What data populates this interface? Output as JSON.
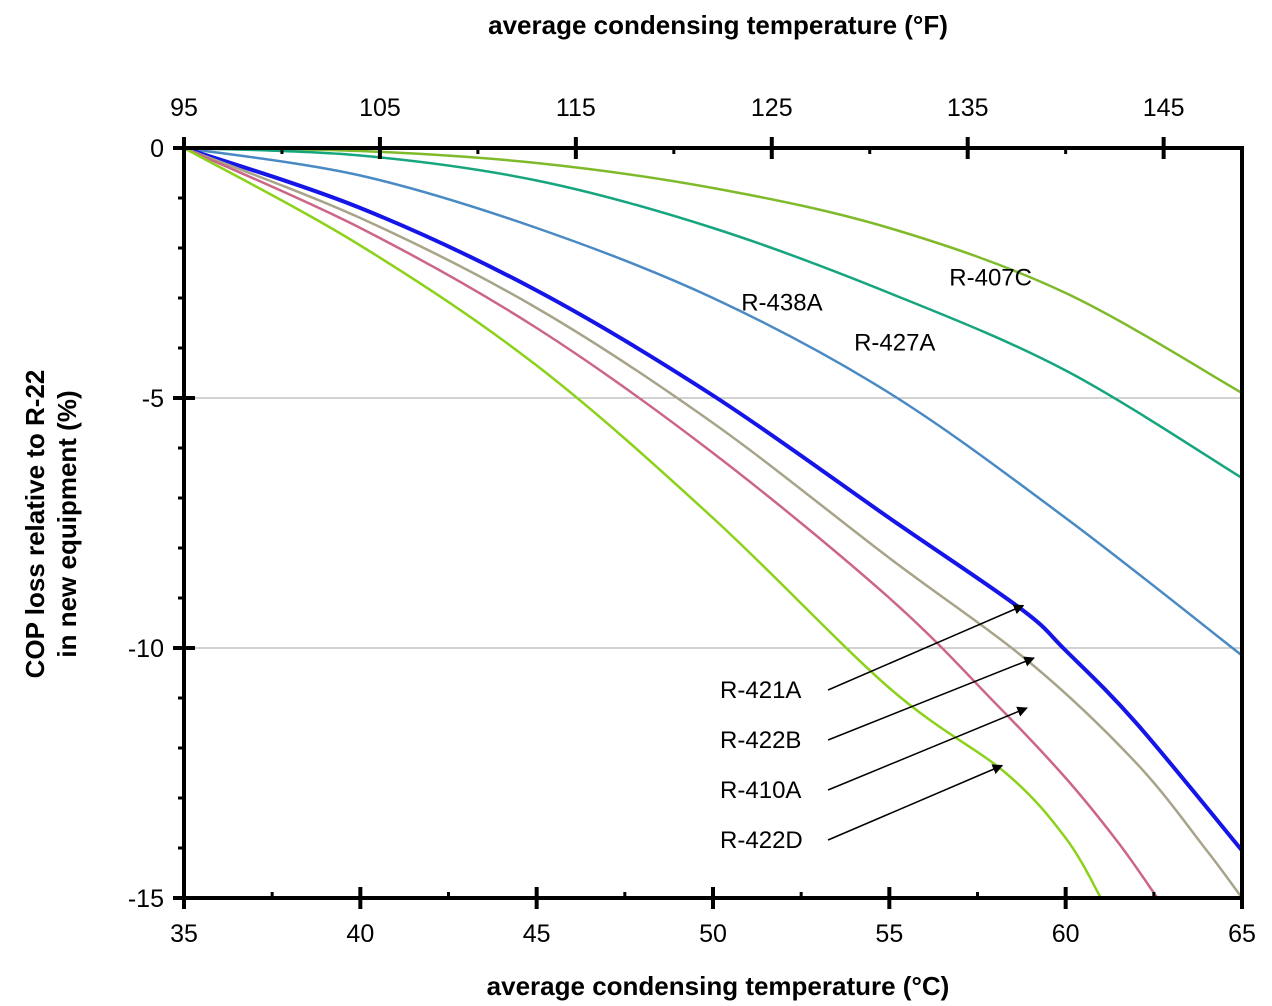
{
  "chart_data": {
    "type": "line",
    "title": "",
    "xlabel": "average condensing temperature (°C)",
    "x2label": "average condensing temperature (°F)",
    "ylabel_line1": "COP loss relative to R-22",
    "ylabel_line2": "in new equipment (%)",
    "xlim": [
      35,
      65
    ],
    "x2lim": [
      95,
      149
    ],
    "ylim": [
      -15,
      0
    ],
    "x_ticks": [
      35,
      40,
      45,
      50,
      55,
      60,
      65
    ],
    "x2_ticks": [
      95,
      105,
      115,
      125,
      135,
      145
    ],
    "y_ticks": [
      0,
      -5,
      -10,
      -15
    ],
    "y_gridlines": [
      -5,
      -10
    ],
    "x_tick_labels": [
      "35",
      "40",
      "45",
      "50",
      "55",
      "60",
      "65"
    ],
    "x2_tick_labels": [
      "95",
      "105",
      "115",
      "125",
      "135",
      "145"
    ],
    "y_tick_labels": [
      "0",
      "-5",
      "-10",
      "-15"
    ],
    "series": [
      {
        "name": "R-407C",
        "color": "#7fba2a",
        "width": 2.5,
        "points": [
          [
            35,
            0
          ],
          [
            40,
            -0.06
          ],
          [
            45,
            -0.3
          ],
          [
            50,
            -0.8
          ],
          [
            55,
            -1.6
          ],
          [
            60,
            -2.9
          ],
          [
            65,
            -4.9
          ]
        ]
      },
      {
        "name": "R-427A",
        "color": "#16a57f",
        "width": 2.5,
        "points": [
          [
            35,
            0
          ],
          [
            40,
            -0.15
          ],
          [
            45,
            -0.65
          ],
          [
            50,
            -1.6
          ],
          [
            55,
            -2.9
          ],
          [
            60,
            -4.45
          ],
          [
            65,
            -6.6
          ]
        ]
      },
      {
        "name": "R-438A",
        "color": "#4a8ac4",
        "width": 2.5,
        "points": [
          [
            35,
            0
          ],
          [
            40,
            -0.55
          ],
          [
            45,
            -1.6
          ],
          [
            50,
            -3.0
          ],
          [
            55,
            -4.9
          ],
          [
            60,
            -7.4
          ],
          [
            65,
            -10.15
          ]
        ]
      },
      {
        "name": "R-421A",
        "color": "#1515e8",
        "width": 4,
        "points": [
          [
            35,
            0
          ],
          [
            40,
            -1.2
          ],
          [
            45,
            -2.85
          ],
          [
            50,
            -4.95
          ],
          [
            55,
            -7.4
          ],
          [
            58.7,
            -9.2
          ],
          [
            60,
            -10.05
          ],
          [
            62,
            -11.5
          ],
          [
            65,
            -14.05
          ]
        ]
      },
      {
        "name": "R-422B",
        "color": "#a8a48a",
        "width": 2.5,
        "points": [
          [
            35,
            0
          ],
          [
            40,
            -1.4
          ],
          [
            45,
            -3.2
          ],
          [
            50,
            -5.5
          ],
          [
            55,
            -8.2
          ],
          [
            59,
            -10.3
          ],
          [
            62,
            -12.3
          ],
          [
            64,
            -14.05
          ],
          [
            65,
            -15
          ]
        ]
      },
      {
        "name": "R-410A",
        "color": "#cc6688",
        "width": 2.5,
        "points": [
          [
            35,
            0
          ],
          [
            40,
            -1.6
          ],
          [
            45,
            -3.6
          ],
          [
            50,
            -6.1
          ],
          [
            55,
            -9.0
          ],
          [
            58,
            -11.1
          ],
          [
            60,
            -12.6
          ],
          [
            61.5,
            -13.9
          ],
          [
            62.6,
            -15
          ]
        ]
      },
      {
        "name": "R-422D",
        "color": "#8cd11a",
        "width": 2.5,
        "points": [
          [
            35,
            0
          ],
          [
            40,
            -1.95
          ],
          [
            45,
            -4.35
          ],
          [
            50,
            -7.4
          ],
          [
            55,
            -10.8
          ],
          [
            58.3,
            -12.5
          ],
          [
            60,
            -13.8
          ],
          [
            61,
            -15
          ]
        ]
      }
    ],
    "annotations": [
      {
        "text": "R-407C",
        "x": 56.7,
        "y": -2.75,
        "arrow_to": null
      },
      {
        "text": "R-427A",
        "x": 54.0,
        "y": -4.05,
        "arrow_to": null
      },
      {
        "text": "R-438A",
        "x": 50.8,
        "y": -3.25,
        "arrow_to": null
      },
      {
        "text": "R-421A",
        "x": 50.2,
        "y": -11.0,
        "arrow_to": [
          58.8,
          -9.15
        ]
      },
      {
        "text": "R-422B",
        "x": 50.2,
        "y": -12.0,
        "arrow_to": [
          59.1,
          -10.2
        ]
      },
      {
        "text": "R-410A",
        "x": 50.2,
        "y": -13.0,
        "arrow_to": [
          58.9,
          -11.2
        ]
      },
      {
        "text": "R-422D",
        "x": 50.2,
        "y": -14.0,
        "arrow_to": [
          58.2,
          -12.35
        ]
      }
    ]
  }
}
